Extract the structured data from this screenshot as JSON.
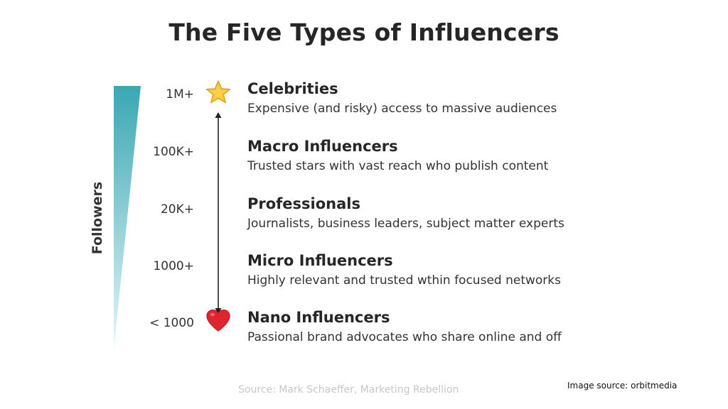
{
  "title": "The Five Types of Influencers",
  "axis_label": "Followers",
  "colors": {
    "wedge_top": "#3aa7b3",
    "wedge_bottom": "#e6f6f8",
    "star": "#f5c431",
    "heart": "#e0242e"
  },
  "tiers": [
    {
      "threshold": "1M+",
      "name": "Celebrities",
      "description": "Expensive (and risky) access to massive audiences",
      "icon": "star-icon"
    },
    {
      "threshold": "100K+",
      "name": "Macro Influencers",
      "description": "Trusted stars with vast reach who publish content",
      "icon": ""
    },
    {
      "threshold": "20K+",
      "name": "Professionals",
      "description": "Journalists, business leaders, subject matter experts",
      "icon": ""
    },
    {
      "threshold": "1000+",
      "name": "Micro Influencers",
      "description": "Highly relevant and trusted wthin focused networks",
      "icon": ""
    },
    {
      "threshold": "< 1000",
      "name": "Nano Influencers",
      "description": "Passional brand advocates who share online and off",
      "icon": "heart-icon"
    }
  ],
  "source": "Source: Mark Schaeffer, Marketing Rebellion",
  "image_source": "Image source: orbitmedia"
}
